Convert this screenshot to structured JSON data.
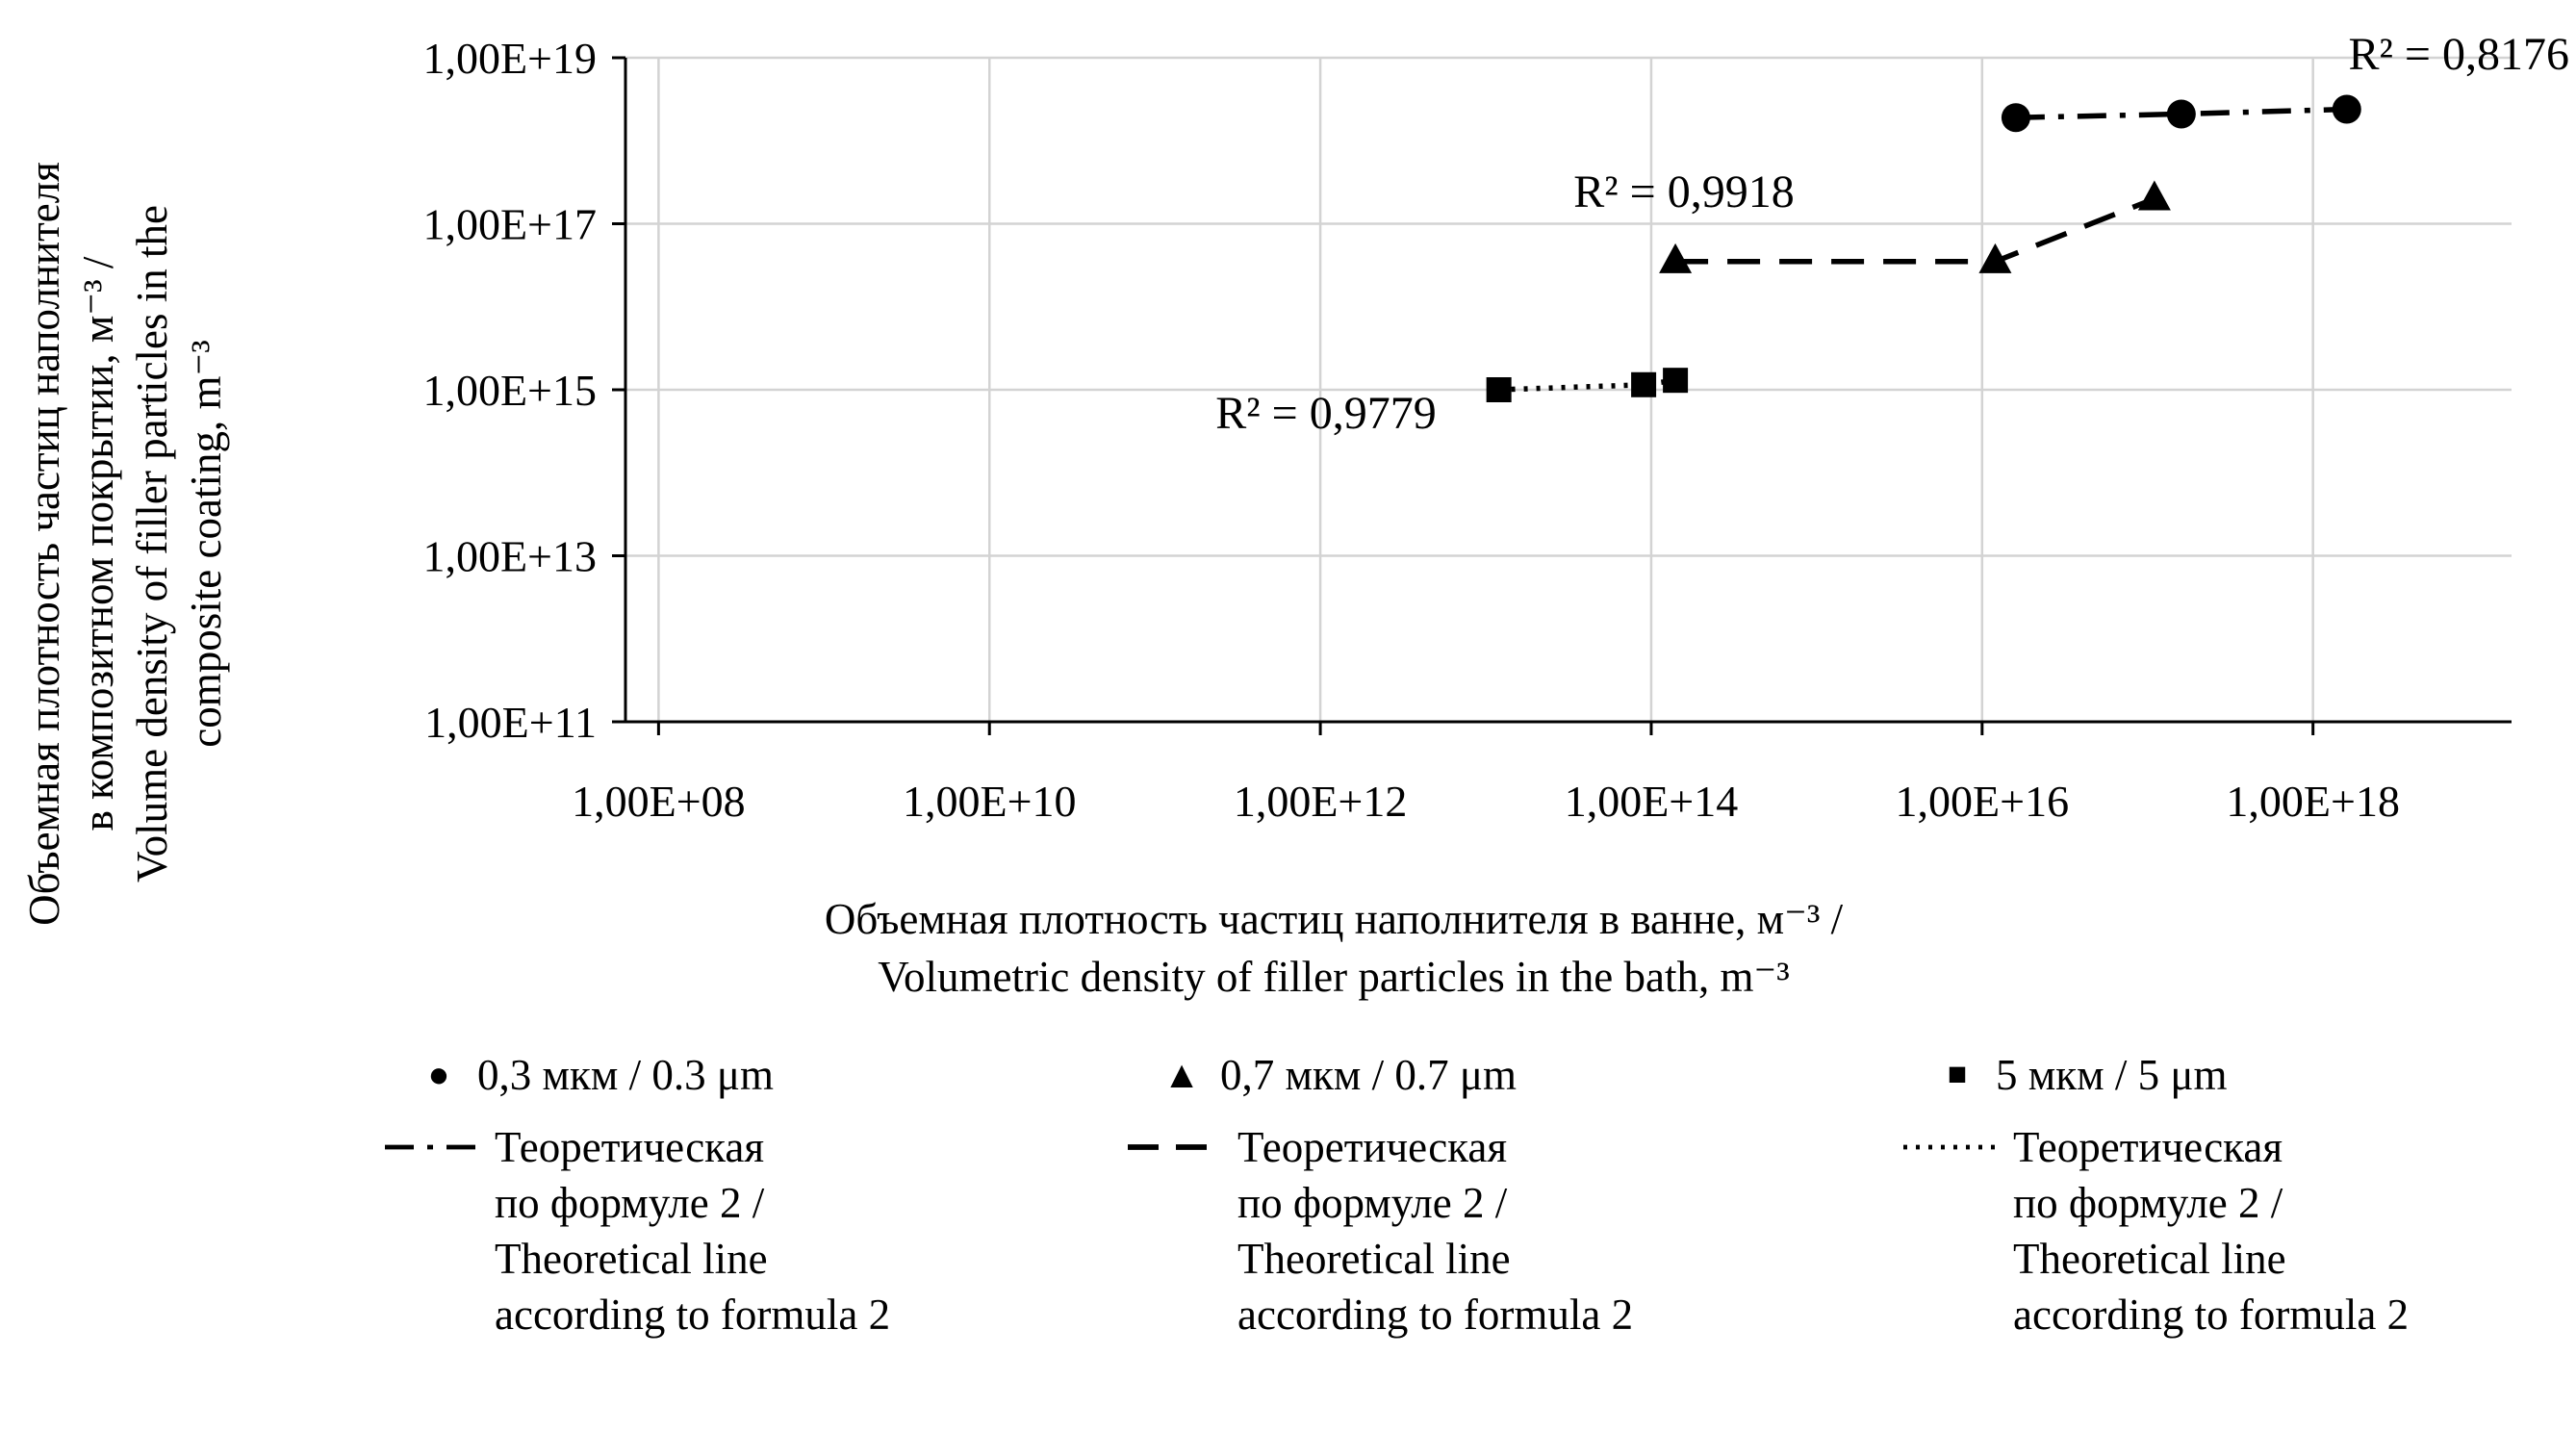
{
  "chart_data": {
    "type": "line",
    "title": "",
    "x_scale": "log",
    "y_scale": "log",
    "x_axis": {
      "title_lines": [
        "Объемная плотность частиц наполнителя в ванне, м⁻³ /",
        "Volumetric density of filler particles in the bath, m⁻³"
      ],
      "ticks": [
        "1,00E+08",
        "1,00E+10",
        "1,00E+12",
        "1,00E+14",
        "1,00E+16",
        "1,00E+18"
      ],
      "tick_values": [
        100000000.0,
        10000000000.0,
        1000000000000.0,
        100000000000000.0,
        1e+16,
        1e+18
      ]
    },
    "y_axis": {
      "title_lines": [
        "Объемная плотность частиц наполнителя",
        "в композитном покрытии, м⁻³ /",
        "Volume density of filler particles in the",
        "composite coating, m⁻³"
      ],
      "ticks": [
        "1,00E+11",
        "1,00E+13",
        "1,00E+15",
        "1,00E+17",
        "1,00E+19"
      ],
      "tick_values": [
        100000000000.0,
        10000000000000.0,
        1000000000000000.0,
        1e+17,
        1e+19
      ]
    },
    "gridlines": {
      "vertical": true,
      "horizontal": true,
      "color": "#d3d3d3"
    },
    "series": [
      {
        "name": "0,3 мкм / 0.3 μm",
        "marker": "circle",
        "line_style": "dash-dot",
        "r_squared_label": "R² = 0,8176",
        "points": [
          [
            1.6e+16,
            1.9e+18
          ],
          [
            1.6e+17,
            2.1e+18
          ],
          [
            1.6e+18,
            2.4e+18
          ]
        ]
      },
      {
        "name": "0,7 мкм / 0.7 μm",
        "marker": "triangle",
        "line_style": "dashed",
        "r_squared_label": "R² = 0,9918",
        "points": [
          [
            140000000000000.0,
            3.5e+16
          ],
          [
            1.2e+16,
            3.5e+16
          ],
          [
            1.1e+17,
            2e+17
          ]
        ]
      },
      {
        "name": "5 мкм / 5 μm",
        "marker": "square",
        "line_style": "dotted",
        "r_squared_label": "R² = 0,9779",
        "points": [
          [
            12000000000000.0,
            1000000000000000.0
          ],
          [
            90000000000000.0,
            1150000000000000.0
          ],
          [
            140000000000000.0,
            1300000000000000.0
          ]
        ]
      }
    ]
  },
  "legend": {
    "columns": [
      {
        "marker": "circle",
        "marker_glyph": "●",
        "size_label": "0,3 мкм / 0.3 μm",
        "line_style": "dash-dot",
        "theory_label_lines": [
          "Теоретическая",
          "по формуле 2 /",
          "Theoretical line",
          "according to formula 2"
        ]
      },
      {
        "marker": "triangle",
        "marker_glyph": "▲",
        "size_label": "0,7 мкм / 0.7 μm",
        "line_style": "dashed",
        "theory_label_lines": [
          "Теоретическая",
          "по формуле 2 /",
          "Theoretical line",
          "according to formula 2"
        ]
      },
      {
        "marker": "square",
        "marker_glyph": "■",
        "size_label": "5 мкм / 5 μm",
        "line_style": "dotted",
        "theory_label_lines": [
          "Теоретическая",
          "по формуле 2 /",
          "Theoretical line",
          "according to formula 2"
        ]
      }
    ]
  },
  "colors": {
    "line": "#000000",
    "text": "#000000",
    "background": "#ffffff",
    "gridline": "#d3d3d3"
  }
}
